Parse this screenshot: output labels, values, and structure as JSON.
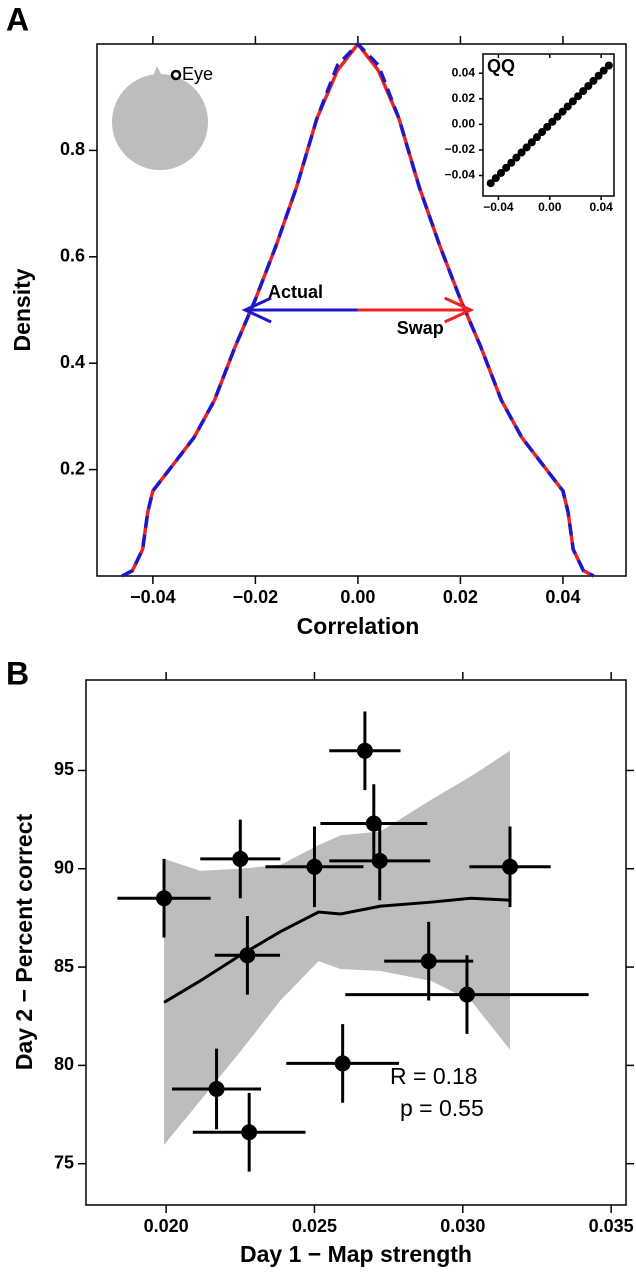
{
  "chart_data": [
    {
      "type": "line",
      "panel_label": "A",
      "icon_label": "Eye",
      "x_label": "Correlation",
      "y_label": "Density",
      "x": [
        -0.046,
        -0.044,
        -0.042,
        -0.041,
        -0.04,
        -0.036,
        -0.032,
        -0.028,
        -0.024,
        -0.02,
        -0.016,
        -0.012,
        -0.008,
        -0.004,
        0,
        0.004,
        0.008,
        0.012,
        0.016,
        0.02,
        0.024,
        0.028,
        0.032,
        0.036,
        0.04,
        0.041,
        0.042,
        0.044,
        0.046
      ],
      "series": [
        {
          "name": "Actual",
          "color": "#1a1acc",
          "dashed": true,
          "arrow_to": -0.022,
          "arrow_at": 0.5,
          "values": [
            0,
            0.01,
            0.05,
            0.12,
            0.16,
            0.21,
            0.26,
            0.33,
            0.43,
            0.52,
            0.62,
            0.73,
            0.86,
            0.96,
            1.0,
            0.96,
            0.86,
            0.73,
            0.62,
            0.52,
            0.43,
            0.33,
            0.26,
            0.21,
            0.16,
            0.12,
            0.05,
            0.01,
            0
          ]
        },
        {
          "name": "Swap",
          "color": "#ee2222",
          "dashed": false,
          "arrow_to": 0.022,
          "arrow_at": 0.5,
          "values": [
            0,
            0.01,
            0.05,
            0.12,
            0.16,
            0.21,
            0.26,
            0.33,
            0.43,
            0.52,
            0.62,
            0.73,
            0.86,
            0.95,
            1.0,
            0.95,
            0.86,
            0.73,
            0.62,
            0.52,
            0.43,
            0.33,
            0.26,
            0.21,
            0.16,
            0.12,
            0.05,
            0.01,
            0
          ]
        }
      ],
      "xlim": [
        -0.0509,
        0.0523
      ],
      "ylim": [
        0,
        1.0
      ],
      "xticks": [
        {
          "value": -0.04,
          "label": "−0.04"
        },
        {
          "value": -0.02,
          "label": "−0.02"
        },
        {
          "value": 0,
          "label": "0.00"
        },
        {
          "value": 0.02,
          "label": "0.02"
        },
        {
          "value": 0.04,
          "label": "0.04"
        }
      ],
      "yticks": [
        0.2,
        0.4,
        0.6,
        0.8
      ]
    },
    {
      "type": "scatter",
      "title": "QQ",
      "color": "#000000",
      "x": [
        -0.046,
        -0.042,
        -0.038,
        -0.034,
        -0.03,
        -0.026,
        -0.022,
        -0.018,
        -0.014,
        -0.01,
        -0.006,
        -0.002,
        0.002,
        0.006,
        0.01,
        0.014,
        0.018,
        0.022,
        0.026,
        0.03,
        0.034,
        0.038,
        0.042,
        0.046
      ],
      "values": [
        -0.046,
        -0.042,
        -0.038,
        -0.034,
        -0.03,
        -0.026,
        -0.022,
        -0.018,
        -0.014,
        -0.01,
        -0.006,
        -0.002,
        0.002,
        0.006,
        0.01,
        0.014,
        0.018,
        0.022,
        0.026,
        0.03,
        0.034,
        0.038,
        0.042,
        0.046
      ],
      "xlim": [
        -0.052,
        0.05
      ],
      "ylim": [
        -0.056,
        0.055
      ],
      "xticks": [
        {
          "value": -0.04,
          "label": "−0.04"
        },
        {
          "value": 0,
          "label": "0.00"
        },
        {
          "value": 0.04,
          "label": "0.04"
        }
      ],
      "yticks": [
        {
          "value": -0.04,
          "label": "−0.04"
        },
        {
          "value": -0.02,
          "label": "−0.02"
        },
        {
          "value": 0,
          "label": "0.00"
        },
        {
          "value": 0.02,
          "label": "0.02"
        },
        {
          "value": 0.04,
          "label": "0.04"
        }
      ]
    },
    {
      "type": "scatter",
      "panel_label": "B",
      "color": "#000000",
      "x_label": "Day 1 − Map strength",
      "y_label": "Day 2 − Percent correct",
      "annotations": [
        "R = 0.18",
        "p = 0.55"
      ],
      "x": [
        0.01993,
        0.0225,
        0.02274,
        0.0217,
        0.0228,
        0.025,
        0.0267,
        0.027,
        0.0272,
        0.02595,
        0.03159,
        0.02885,
        0.03014
      ],
      "values": [
        88.5,
        90.5,
        85.6,
        78.8,
        76.6,
        90.1,
        96.0,
        92.3,
        90.4,
        80.1,
        90.1,
        85.3,
        83.6
      ],
      "xerr": [
        0.00157,
        0.00135,
        0.0011,
        0.0015,
        0.0019,
        0.00165,
        0.0012,
        0.0018,
        0.0017,
        0.0019,
        0.00137,
        0.0015,
        0.0041
      ],
      "yerr": [
        2.0,
        2.0,
        2.0,
        2.05,
        2.0,
        2.05,
        2.0,
        2.0,
        2.0,
        2.0,
        2.05,
        2.0,
        2.0
      ],
      "fit": {
        "color": "#bdbdbd",
        "x": [
          0.01993,
          0.02115,
          0.0225,
          0.02385,
          0.02514,
          0.02588,
          0.02723,
          0.02892,
          0.03027,
          0.03159
        ],
        "values": [
          83.2,
          84.3,
          85.6,
          86.8,
          87.8,
          87.7,
          88.1,
          88.3,
          88.5,
          88.4
        ],
        "lower": [
          75.96,
          78.2,
          80.7,
          83.3,
          85.3,
          84.9,
          84.8,
          84.3,
          83.3,
          80.8
        ],
        "upper": [
          90.5,
          89.9,
          90.0,
          90.2,
          91.2,
          91.7,
          91.9,
          93.5,
          94.7,
          96.0
        ]
      },
      "xlim": [
        0.0173,
        0.0355
      ],
      "ylim": [
        72.9,
        99.6
      ],
      "xticks": [
        {
          "value": 0.02,
          "label": "0.020"
        },
        {
          "value": 0.025,
          "label": "0.025"
        },
        {
          "value": 0.03,
          "label": "0.030"
        },
        {
          "value": 0.035,
          "label": "0.035"
        }
      ],
      "yticks": [
        75,
        80,
        85,
        90,
        95
      ]
    }
  ]
}
